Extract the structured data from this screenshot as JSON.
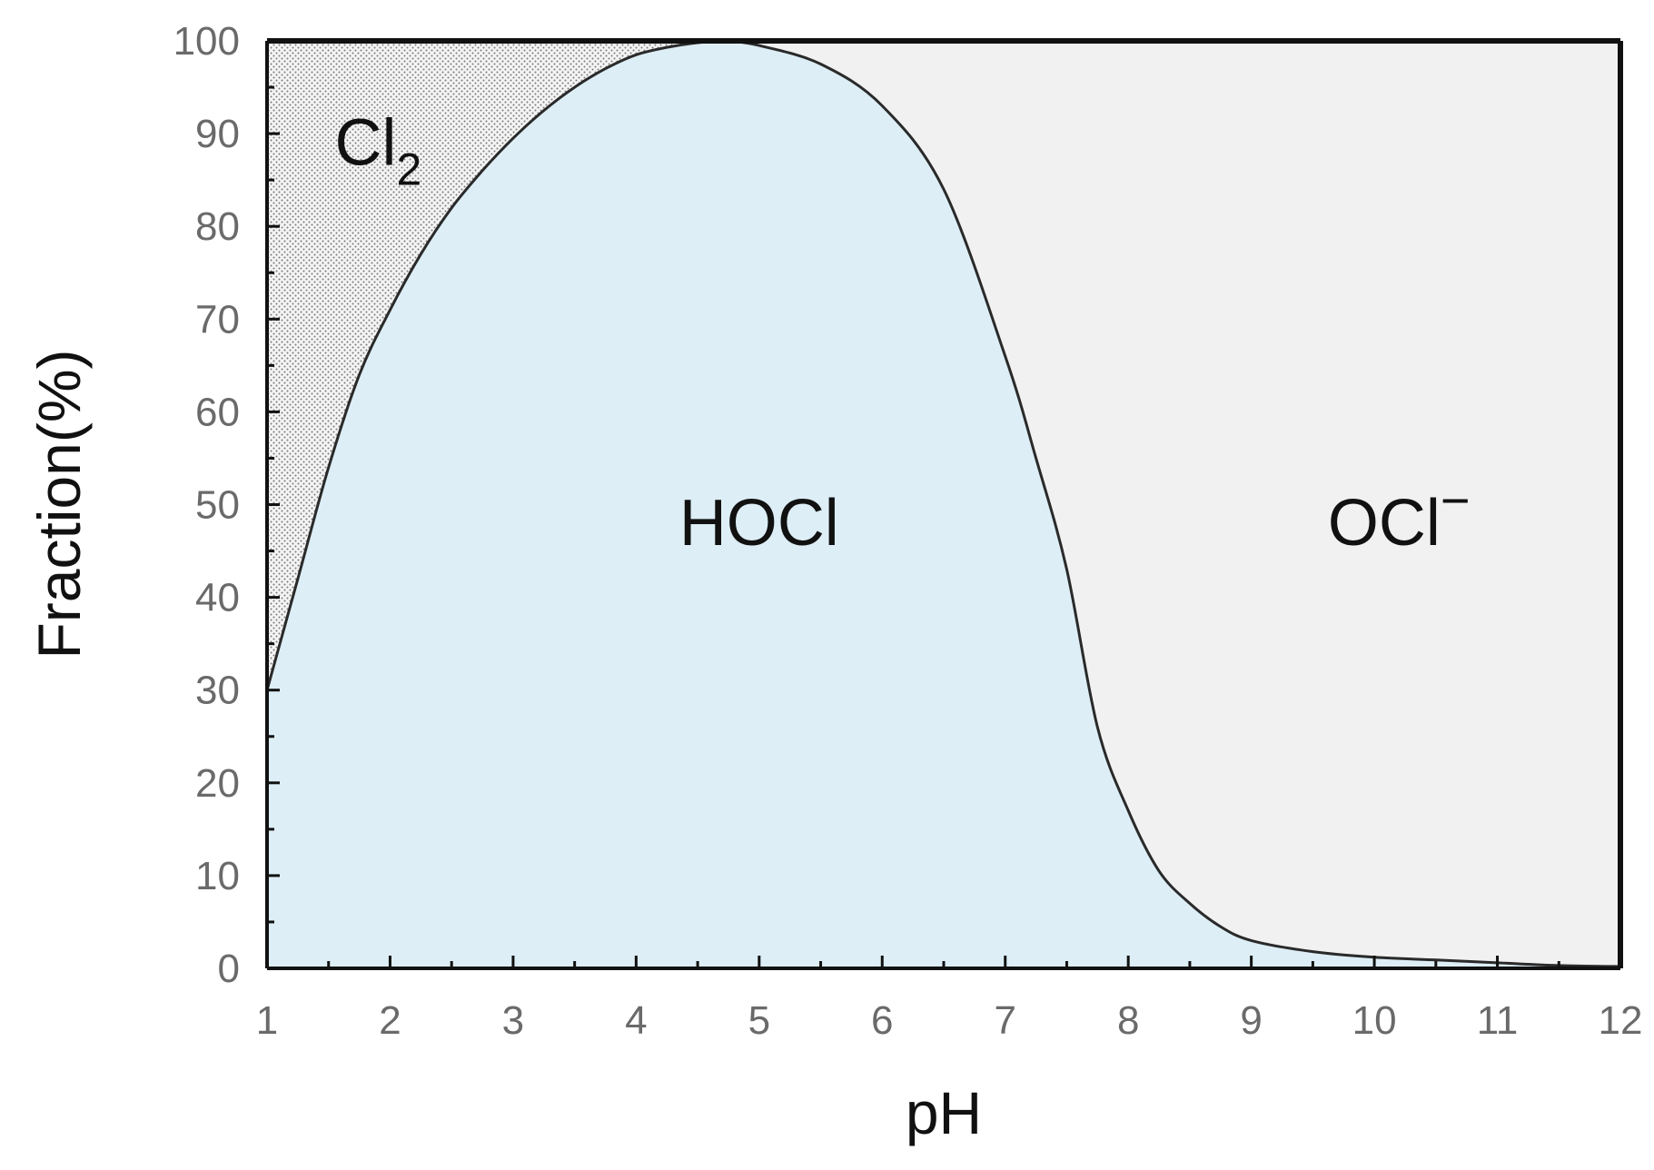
{
  "chart_data": {
    "type": "area",
    "xlabel": "pH",
    "ylabel": "Fraction(%)",
    "xlim": [
      1,
      12
    ],
    "ylim": [
      0,
      100
    ],
    "x_ticks": [
      1,
      2,
      3,
      4,
      5,
      6,
      7,
      8,
      9,
      10,
      11,
      12
    ],
    "y_ticks": [
      0,
      10,
      20,
      30,
      40,
      50,
      60,
      70,
      80,
      90,
      100
    ],
    "x_tick_labels": [
      "1",
      "2",
      "3",
      "4",
      "5",
      "6",
      "7",
      "8",
      "9",
      "10",
      "11",
      "12"
    ],
    "y_tick_labels": [
      "0",
      "10",
      "20",
      "30",
      "40",
      "50",
      "60",
      "70",
      "80",
      "90",
      "100"
    ],
    "grid": false,
    "regions": [
      {
        "name": "Cl2",
        "label_main": "Cl",
        "label_sub": "2",
        "color": "#f2f2f2",
        "pattern": "dotted",
        "label_at": [
          1.55,
          89
        ]
      },
      {
        "name": "HOCl",
        "label_main": "HOCl",
        "color": "#ddeef6",
        "label_at": [
          5.0,
          48
        ]
      },
      {
        "name": "OCl-",
        "label_main": "OCl",
        "label_sup": "−",
        "color": "#f1f1f1",
        "label_at": [
          10.2,
          48
        ]
      }
    ],
    "boundary_lower": {
      "description_key": "Cl2/HOCl boundary",
      "x": [
        1.0,
        1.25,
        1.5,
        1.75,
        2.0,
        2.25,
        2.5,
        2.75,
        3.0,
        3.25,
        3.5,
        3.75,
        4.0,
        4.25,
        4.5,
        4.75,
        5.0
      ],
      "y": [
        30,
        42,
        54,
        64,
        71,
        77,
        82,
        86,
        89.5,
        92.5,
        95,
        97,
        98.5,
        99.3,
        99.8,
        100,
        100
      ]
    },
    "boundary_upper": {
      "description_key": "HOCl/OCl- boundary",
      "x": [
        4.75,
        5.0,
        5.5,
        6.0,
        6.5,
        7.0,
        7.25,
        7.5,
        7.75,
        8.0,
        8.25,
        8.5,
        8.75,
        9.0,
        9.5,
        10.0,
        10.5,
        11.0,
        11.5,
        12.0
      ],
      "y": [
        100,
        99.5,
        97.5,
        93,
        84,
        66,
        55,
        43,
        26,
        17,
        10.5,
        7,
        4.5,
        3,
        1.8,
        1.2,
        0.9,
        0.6,
        0.3,
        0.2
      ]
    },
    "colors": {
      "axis": "#111111",
      "curve": "#2a2a2a",
      "cl2_dots": "#6b6b6b",
      "tick_label": "#6a6a6a"
    }
  }
}
